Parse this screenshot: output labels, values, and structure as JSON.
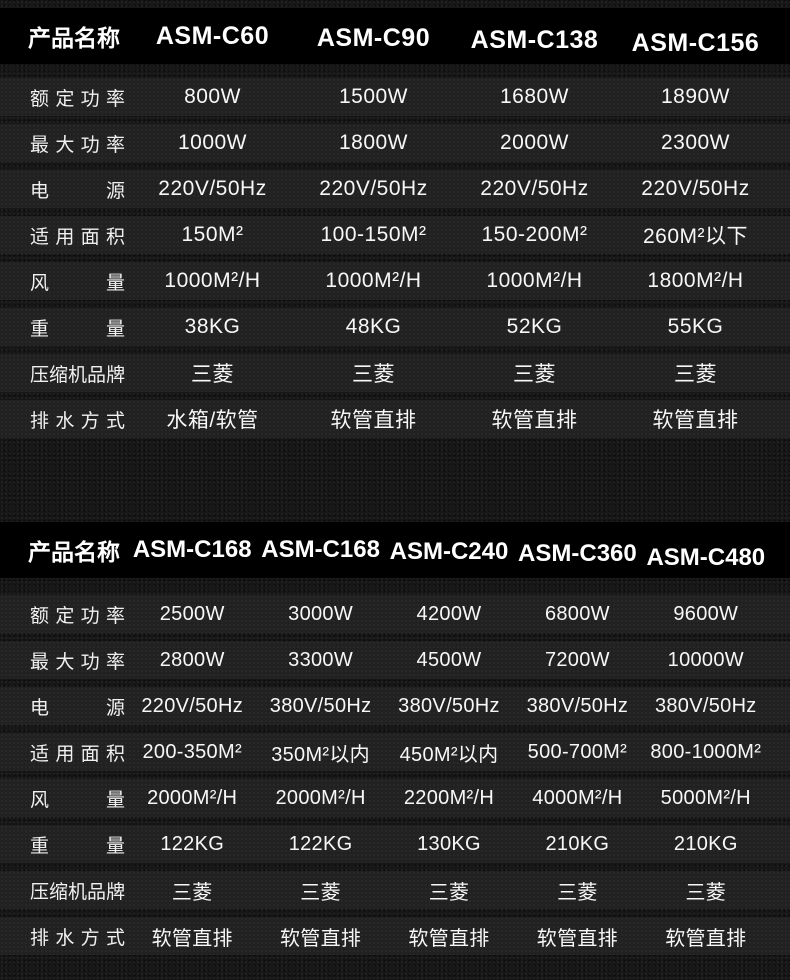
{
  "theme": {
    "page_bg": "#171717",
    "header_bg": "#000000",
    "row_bg": "#212121",
    "text_color": "#f7f7f7"
  },
  "tables": [
    {
      "header": {
        "label": "产品名称",
        "models": [
          "ASM-C60",
          "ASM-C90",
          "ASM-C138",
          "ASM-C156"
        ]
      },
      "rows": [
        {
          "label": "额定功率",
          "values": [
            "800W",
            "1500W",
            "1680W",
            "1890W"
          ]
        },
        {
          "label": "最大功率",
          "values": [
            "1000W",
            "1800W",
            "2000W",
            "2300W"
          ]
        },
        {
          "label": "电源",
          "values": [
            "220V/50Hz",
            "220V/50Hz",
            "220V/50Hz",
            "220V/50Hz"
          ]
        },
        {
          "label": "适用面积",
          "values": [
            "150M²",
            "100-150M²",
            "150-200M²",
            "260M²以下"
          ]
        },
        {
          "label": "风量",
          "values": [
            "1000M²/H",
            "1000M²/H",
            "1000M²/H",
            "1800M²/H"
          ]
        },
        {
          "label": "重量",
          "values": [
            "38KG",
            "48KG",
            "52KG",
            "55KG"
          ]
        },
        {
          "label": "压缩机品牌",
          "values": [
            "三菱",
            "三菱",
            "三菱",
            "三菱"
          ]
        },
        {
          "label": "排水方式",
          "values": [
            "水箱/软管",
            "软管直排",
            "软管直排",
            "软管直排"
          ]
        }
      ]
    },
    {
      "header": {
        "label": "产品名称",
        "models": [
          "ASM-C168",
          "ASM-C168",
          "ASM-C240",
          "ASM-C360",
          "ASM-C480"
        ]
      },
      "rows": [
        {
          "label": "额定功率",
          "values": [
            "2500W",
            "3000W",
            "4200W",
            "6800W",
            "9600W"
          ]
        },
        {
          "label": "最大功率",
          "values": [
            "2800W",
            "3300W",
            "4500W",
            "7200W",
            "10000W"
          ]
        },
        {
          "label": "电源",
          "values": [
            "220V/50Hz",
            "380V/50Hz",
            "380V/50Hz",
            "380V/50Hz",
            "380V/50Hz"
          ]
        },
        {
          "label": "适用面积",
          "values": [
            "200-350M²",
            "350M²以内",
            "450M²以内",
            "500-700M²",
            "800-1000M²"
          ]
        },
        {
          "label": "风量",
          "values": [
            "2000M²/H",
            "2000M²/H",
            "2200M²/H",
            "4000M²/H",
            "5000M²/H"
          ]
        },
        {
          "label": "重量",
          "values": [
            "122KG",
            "122KG",
            "130KG",
            "210KG",
            "210KG"
          ]
        },
        {
          "label": "压缩机品牌",
          "values": [
            "三菱",
            "三菱",
            "三菱",
            "三菱",
            "三菱"
          ]
        },
        {
          "label": "排水方式",
          "values": [
            "软管直排",
            "软管直排",
            "软管直排",
            "软管直排",
            "软管直排"
          ]
        }
      ]
    }
  ]
}
